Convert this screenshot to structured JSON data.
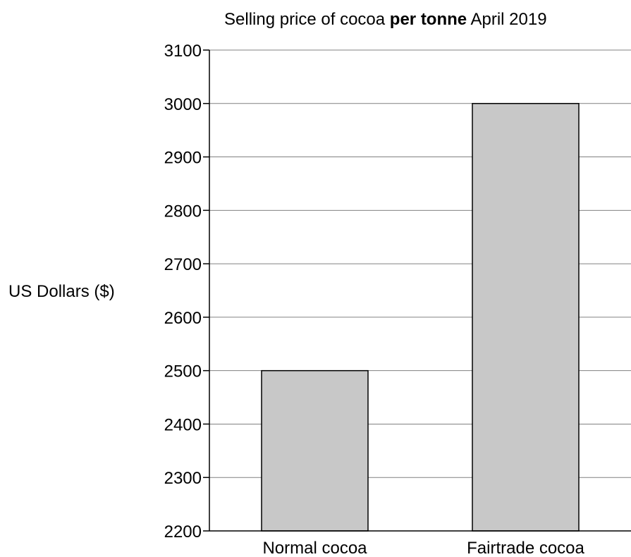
{
  "chart_data": {
    "type": "bar",
    "title": {
      "before": "Selling price of cocoa ",
      "emphasis": "per tonne",
      "after": " April 2019"
    },
    "xlabel": "",
    "ylabel": "US Dollars ($)",
    "categories": [
      "Normal cocoa",
      "Fairtrade cocoa"
    ],
    "values": [
      2500,
      3000
    ],
    "ylim": [
      2200,
      3100
    ],
    "yticks": [
      2200,
      2300,
      2400,
      2500,
      2600,
      2700,
      2800,
      2900,
      3000,
      3100
    ],
    "grid": true,
    "legend": "none",
    "colors": {
      "bar_fill": "#c8c8c8",
      "bar_stroke": "#000000",
      "grid": "#808080",
      "axis": "#000000"
    }
  }
}
